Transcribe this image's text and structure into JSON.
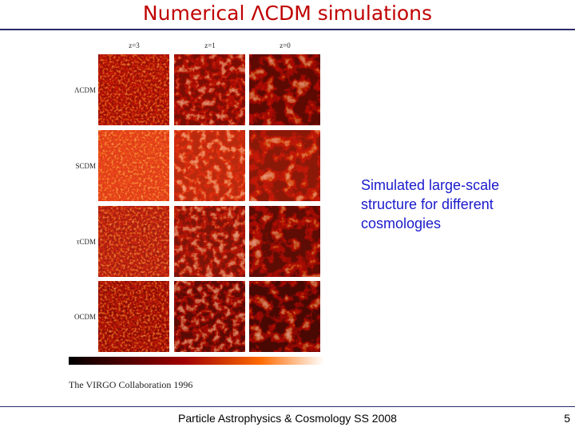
{
  "header": {
    "title": "Numerical ΛCDM simulations"
  },
  "figure": {
    "columns": [
      "z=3",
      "z=1",
      "z=0"
    ],
    "rows": [
      "ΛCDM",
      "SCDM",
      "τCDM",
      "OCDM"
    ],
    "credit": "The VIRGO Collaboration 1996"
  },
  "caption": "Simulated large-scale structure for different cosmologies",
  "footer": {
    "text": "Particle Astrophysics & Cosmology SS 2008",
    "page": "5"
  }
}
